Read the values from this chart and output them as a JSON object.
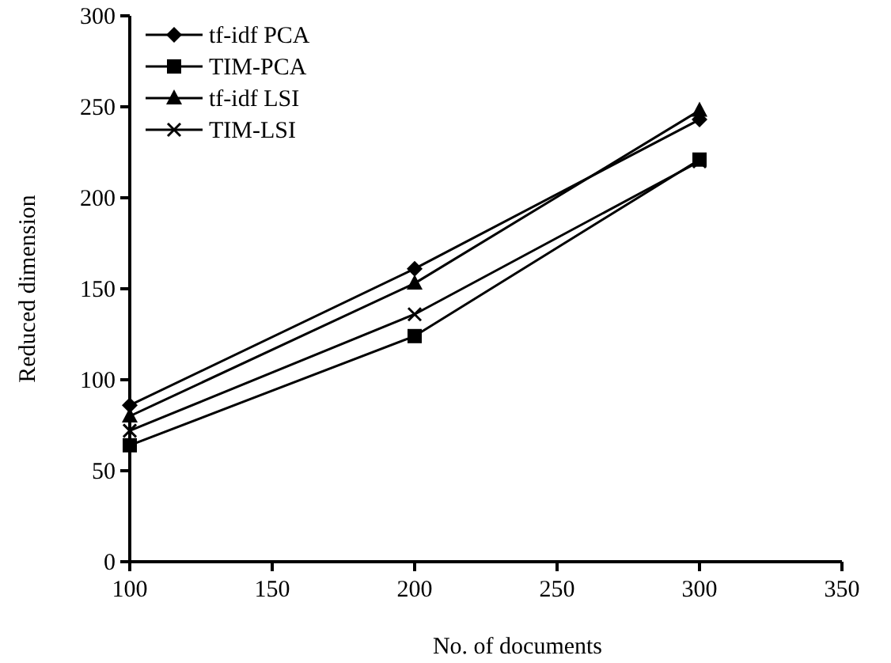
{
  "chart_data": {
    "type": "line",
    "xlabel": "No. of documents",
    "ylabel": "Reduced dimension",
    "x": [
      100,
      200,
      300
    ],
    "xlim": [
      100,
      350
    ],
    "xticks": [
      100,
      150,
      200,
      250,
      300,
      350
    ],
    "ylim": [
      0,
      300
    ],
    "yticks": [
      0,
      50,
      100,
      150,
      200,
      250,
      300
    ],
    "grid": false,
    "legend": "top left",
    "series": [
      {
        "name": "tf-idf PCA",
        "color": "#000000",
        "marker": "diamond",
        "values": [
          86,
          161,
          243
        ]
      },
      {
        "name": "TIM-PCA",
        "color": "#000000",
        "marker": "square",
        "values": [
          64,
          124,
          221
        ]
      },
      {
        "name": "tf-idf LSI",
        "color": "#000000",
        "marker": "triangle",
        "values": [
          80,
          153,
          248
        ]
      },
      {
        "name": "TIM-LSI",
        "color": "#000000",
        "marker": "cross",
        "values": [
          72,
          136,
          220
        ]
      }
    ]
  }
}
